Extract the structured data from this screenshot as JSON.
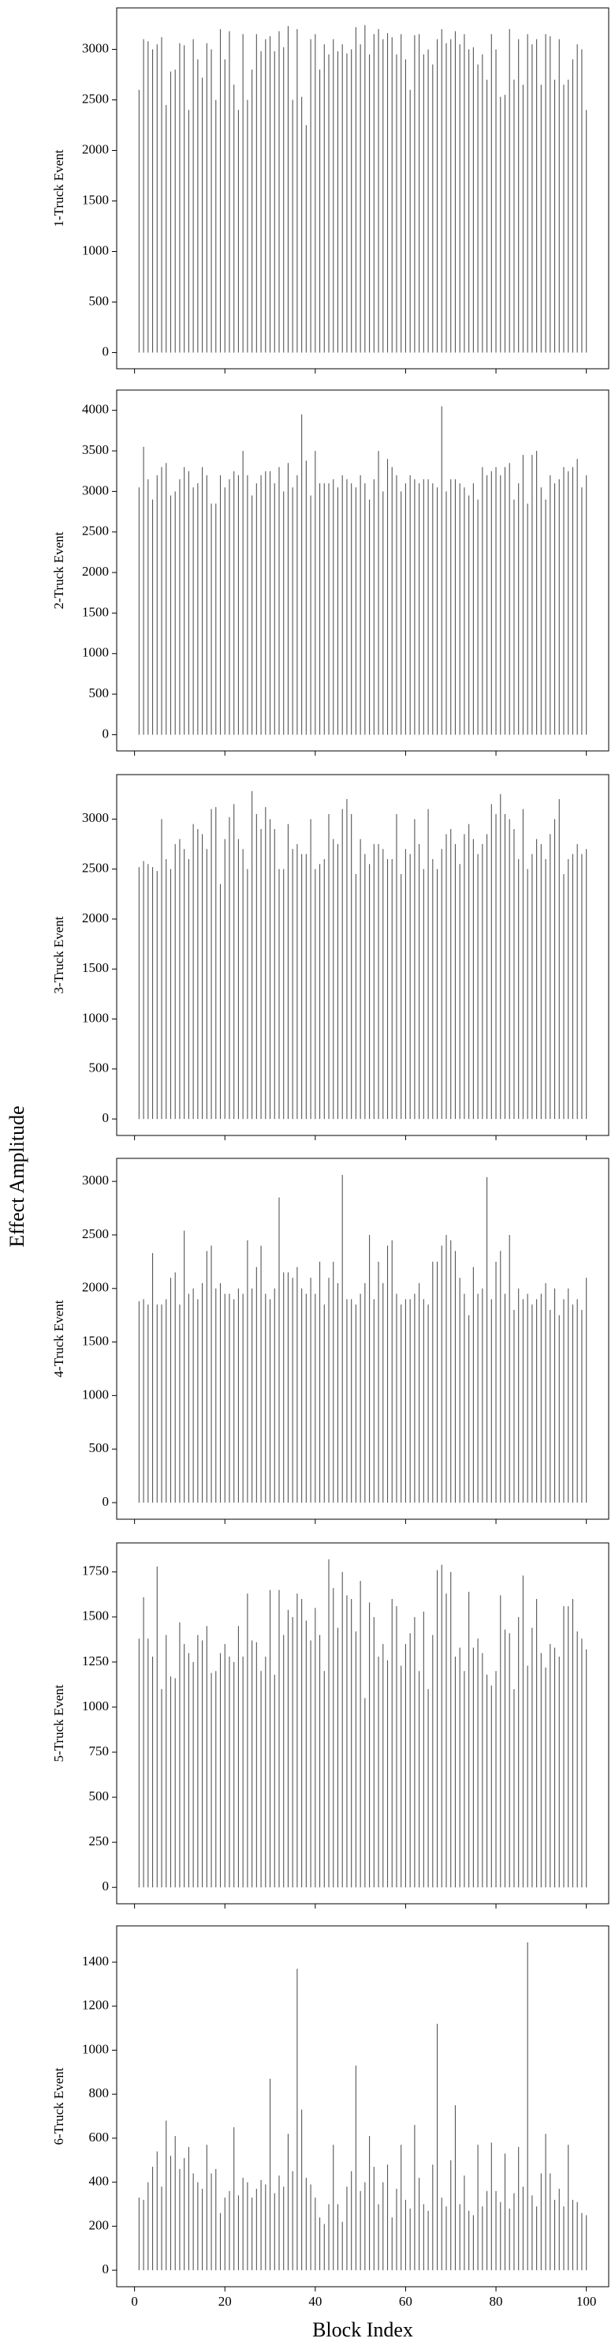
{
  "chart_data": {
    "type": "stem",
    "xlabel": "Block Index",
    "ylabel": "Effect Amplitude",
    "color": "#555555",
    "x": [
      1,
      2,
      3,
      4,
      5,
      6,
      7,
      8,
      9,
      10,
      11,
      12,
      13,
      14,
      15,
      16,
      17,
      18,
      19,
      20,
      21,
      22,
      23,
      24,
      25,
      26,
      27,
      28,
      29,
      30,
      31,
      32,
      33,
      34,
      35,
      36,
      37,
      38,
      39,
      40,
      41,
      42,
      43,
      44,
      45,
      46,
      47,
      48,
      49,
      50,
      51,
      52,
      53,
      54,
      55,
      56,
      57,
      58,
      59,
      60,
      61,
      62,
      63,
      64,
      65,
      66,
      67,
      68,
      69,
      70,
      71,
      72,
      73,
      74,
      75,
      76,
      77,
      78,
      79,
      80,
      81,
      82,
      83,
      84,
      85,
      86,
      87,
      88,
      89,
      90,
      91,
      92,
      93,
      94,
      95,
      96,
      97,
      98,
      99,
      100
    ],
    "xlim": [
      -3.95,
      104.95
    ],
    "xticks": [
      0,
      20,
      40,
      60,
      80,
      100
    ],
    "series": [
      {
        "name": "1-Truck Event",
        "ylim": [
          -160,
          3410
        ],
        "yticks": [
          0,
          500,
          1000,
          1500,
          2000,
          2500,
          3000
        ],
        "values": [
          2600,
          3100,
          3080,
          3000,
          3050,
          3120,
          2450,
          2780,
          2800,
          3060,
          3040,
          2400,
          3100,
          2900,
          2720,
          3060,
          3000,
          2500,
          3200,
          2900,
          3180,
          2650,
          2400,
          3150,
          2500,
          2800,
          3150,
          2980,
          3100,
          3130,
          2980,
          3180,
          3020,
          3230,
          2500,
          3200,
          2530,
          2250,
          3100,
          3150,
          2800,
          3050,
          2950,
          3100,
          2980,
          3050,
          2960,
          3000,
          3220,
          3050,
          3240,
          2950,
          3150,
          3200,
          3100,
          3160,
          3120,
          2950,
          3150,
          2900,
          2600,
          3140,
          3150,
          2950,
          3000,
          2850,
          3100,
          3200,
          3060,
          3100,
          3180,
          3050,
          3150,
          3000,
          3020,
          2850,
          2950,
          2700,
          3150,
          3000,
          2530,
          2550,
          3200,
          2700,
          3100,
          2650,
          3150,
          3050,
          3100,
          2650,
          3150,
          3130,
          2700,
          3100,
          2650,
          2700,
          2900,
          3050,
          3000,
          2400
        ]
      },
      {
        "name": "2-Truck Event",
        "ylim": [
          -200,
          4250
        ],
        "yticks": [
          0,
          500,
          1000,
          1500,
          2000,
          2500,
          3000,
          3500,
          4000
        ],
        "values": [
          3050,
          3550,
          3150,
          2900,
          3200,
          3300,
          3350,
          2950,
          3000,
          3150,
          3300,
          3250,
          3050,
          3100,
          3300,
          3200,
          2850,
          2850,
          3200,
          3050,
          3150,
          3250,
          3200,
          3500,
          3200,
          2950,
          3100,
          3200,
          3250,
          3250,
          3100,
          3300,
          3000,
          3350,
          3050,
          3200,
          3950,
          3380,
          2950,
          3500,
          3100,
          3100,
          3100,
          3150,
          3050,
          3200,
          3150,
          3100,
          3050,
          3200,
          3100,
          2900,
          3150,
          3500,
          3000,
          3400,
          3300,
          3200,
          3000,
          3100,
          3200,
          3150,
          3100,
          3150,
          3150,
          3100,
          3050,
          4050,
          3000,
          3150,
          3150,
          3100,
          3050,
          2950,
          3100,
          2900,
          3300,
          3200,
          3250,
          3300,
          3200,
          3300,
          3350,
          2900,
          3100,
          3450,
          2850,
          3450,
          3500,
          3050,
          2900,
          3200,
          3100,
          3150,
          3300,
          3250,
          3300,
          3400,
          3050,
          3200
        ]
      },
      {
        "name": "3-Truck Event",
        "ylim": [
          -165,
          3445
        ],
        "yticks": [
          0,
          500,
          1000,
          1500,
          2000,
          2500,
          3000
        ],
        "values": [
          2520,
          2580,
          2550,
          2520,
          2480,
          3000,
          2600,
          2500,
          2750,
          2800,
          2700,
          2600,
          2950,
          2900,
          2850,
          2700,
          3100,
          3120,
          2350,
          2800,
          3020,
          3150,
          2800,
          2700,
          2500,
          3280,
          3050,
          2900,
          3120,
          3000,
          2900,
          2500,
          2500,
          2950,
          2700,
          2750,
          2650,
          2650,
          3000,
          2500,
          2550,
          2600,
          3050,
          2800,
          2750,
          3100,
          3200,
          3050,
          2450,
          2800,
          2650,
          2550,
          2750,
          2750,
          2700,
          2600,
          2600,
          3050,
          2450,
          2700,
          2650,
          3000,
          2750,
          2500,
          3100,
          2600,
          2500,
          2700,
          2850,
          2900,
          2750,
          2550,
          2850,
          2950,
          2800,
          2650,
          2750,
          2850,
          3150,
          3050,
          3250,
          3050,
          3000,
          2900,
          2600,
          3100,
          2500,
          2650,
          2800,
          2750,
          2600,
          2850,
          3000,
          3200,
          2450,
          2600,
          2650,
          2750,
          2650,
          2700
        ]
      },
      {
        "name": "4-Truck Event",
        "ylim": [
          -155,
          3215
        ],
        "yticks": [
          0,
          500,
          1000,
          1500,
          2000,
          2500,
          3000
        ],
        "values": [
          1880,
          1900,
          1850,
          2330,
          1850,
          1850,
          1900,
          2100,
          2150,
          1850,
          2540,
          1950,
          2000,
          1900,
          2050,
          2350,
          2400,
          2000,
          2050,
          1950,
          1950,
          1900,
          2000,
          1950,
          2450,
          2000,
          2200,
          2400,
          1950,
          1900,
          2000,
          2850,
          2150,
          2150,
          2100,
          2200,
          2000,
          1950,
          2100,
          1950,
          2250,
          1850,
          2100,
          2250,
          2050,
          3060,
          1900,
          1900,
          1850,
          1950,
          2050,
          2500,
          1900,
          2250,
          2050,
          2400,
          2450,
          1950,
          1850,
          1900,
          1900,
          1950,
          2050,
          1900,
          1850,
          2250,
          2250,
          2400,
          2500,
          2450,
          2350,
          2100,
          1950,
          1750,
          2200,
          1950,
          2000,
          3040,
          1900,
          2250,
          2350,
          1950,
          2500,
          1800,
          2000,
          1900,
          1950,
          1850,
          1900,
          1950,
          2050,
          1800,
          2000,
          1750,
          1900,
          2000,
          1850,
          1900,
          1800,
          2100
        ]
      },
      {
        "name": "5-Truck Event",
        "ylim": [
          -91,
          1911
        ],
        "yticks": [
          0,
          250,
          500,
          750,
          1000,
          1250,
          1500,
          1750
        ],
        "values": [
          1380,
          1610,
          1380,
          1280,
          1780,
          1100,
          1400,
          1170,
          1160,
          1470,
          1350,
          1300,
          1250,
          1400,
          1370,
          1450,
          1190,
          1200,
          1300,
          1350,
          1280,
          1250,
          1450,
          1280,
          1630,
          1370,
          1360,
          1200,
          1280,
          1650,
          1180,
          1650,
          1400,
          1540,
          1500,
          1630,
          1600,
          1480,
          1370,
          1550,
          1400,
          1200,
          1820,
          1660,
          1440,
          1750,
          1620,
          1600,
          1420,
          1700,
          1050,
          1580,
          1500,
          1280,
          1350,
          1260,
          1600,
          1560,
          1230,
          1350,
          1410,
          1500,
          1200,
          1530,
          1100,
          1400,
          1760,
          1790,
          1630,
          1750,
          1280,
          1330,
          1200,
          1640,
          1330,
          1380,
          1300,
          1180,
          1120,
          1200,
          1620,
          1430,
          1410,
          1100,
          1500,
          1730,
          1230,
          1440,
          1600,
          1300,
          1220,
          1350,
          1330,
          1280,
          1560,
          1560,
          1600,
          1420,
          1380,
          1320
        ]
      },
      {
        "name": "6-Truck Event",
        "ylim": [
          -75,
          1565
        ],
        "yticks": [
          0,
          200,
          400,
          600,
          800,
          1000,
          1200,
          1400
        ],
        "values": [
          330,
          320,
          400,
          470,
          540,
          380,
          680,
          520,
          610,
          460,
          510,
          560,
          440,
          400,
          370,
          570,
          440,
          460,
          260,
          330,
          360,
          650,
          340,
          420,
          400,
          330,
          370,
          410,
          390,
          870,
          350,
          430,
          380,
          620,
          450,
          1370,
          730,
          420,
          390,
          330,
          240,
          210,
          300,
          570,
          300,
          220,
          380,
          450,
          930,
          360,
          400,
          610,
          470,
          300,
          400,
          480,
          240,
          370,
          570,
          320,
          280,
          660,
          420,
          300,
          270,
          480,
          1120,
          330,
          290,
          500,
          750,
          300,
          430,
          270,
          250,
          570,
          290,
          360,
          580,
          360,
          310,
          530,
          280,
          350,
          560,
          380,
          1490,
          340,
          290,
          440,
          620,
          440,
          320,
          370,
          290,
          570,
          320,
          310,
          260,
          250
        ]
      }
    ]
  }
}
